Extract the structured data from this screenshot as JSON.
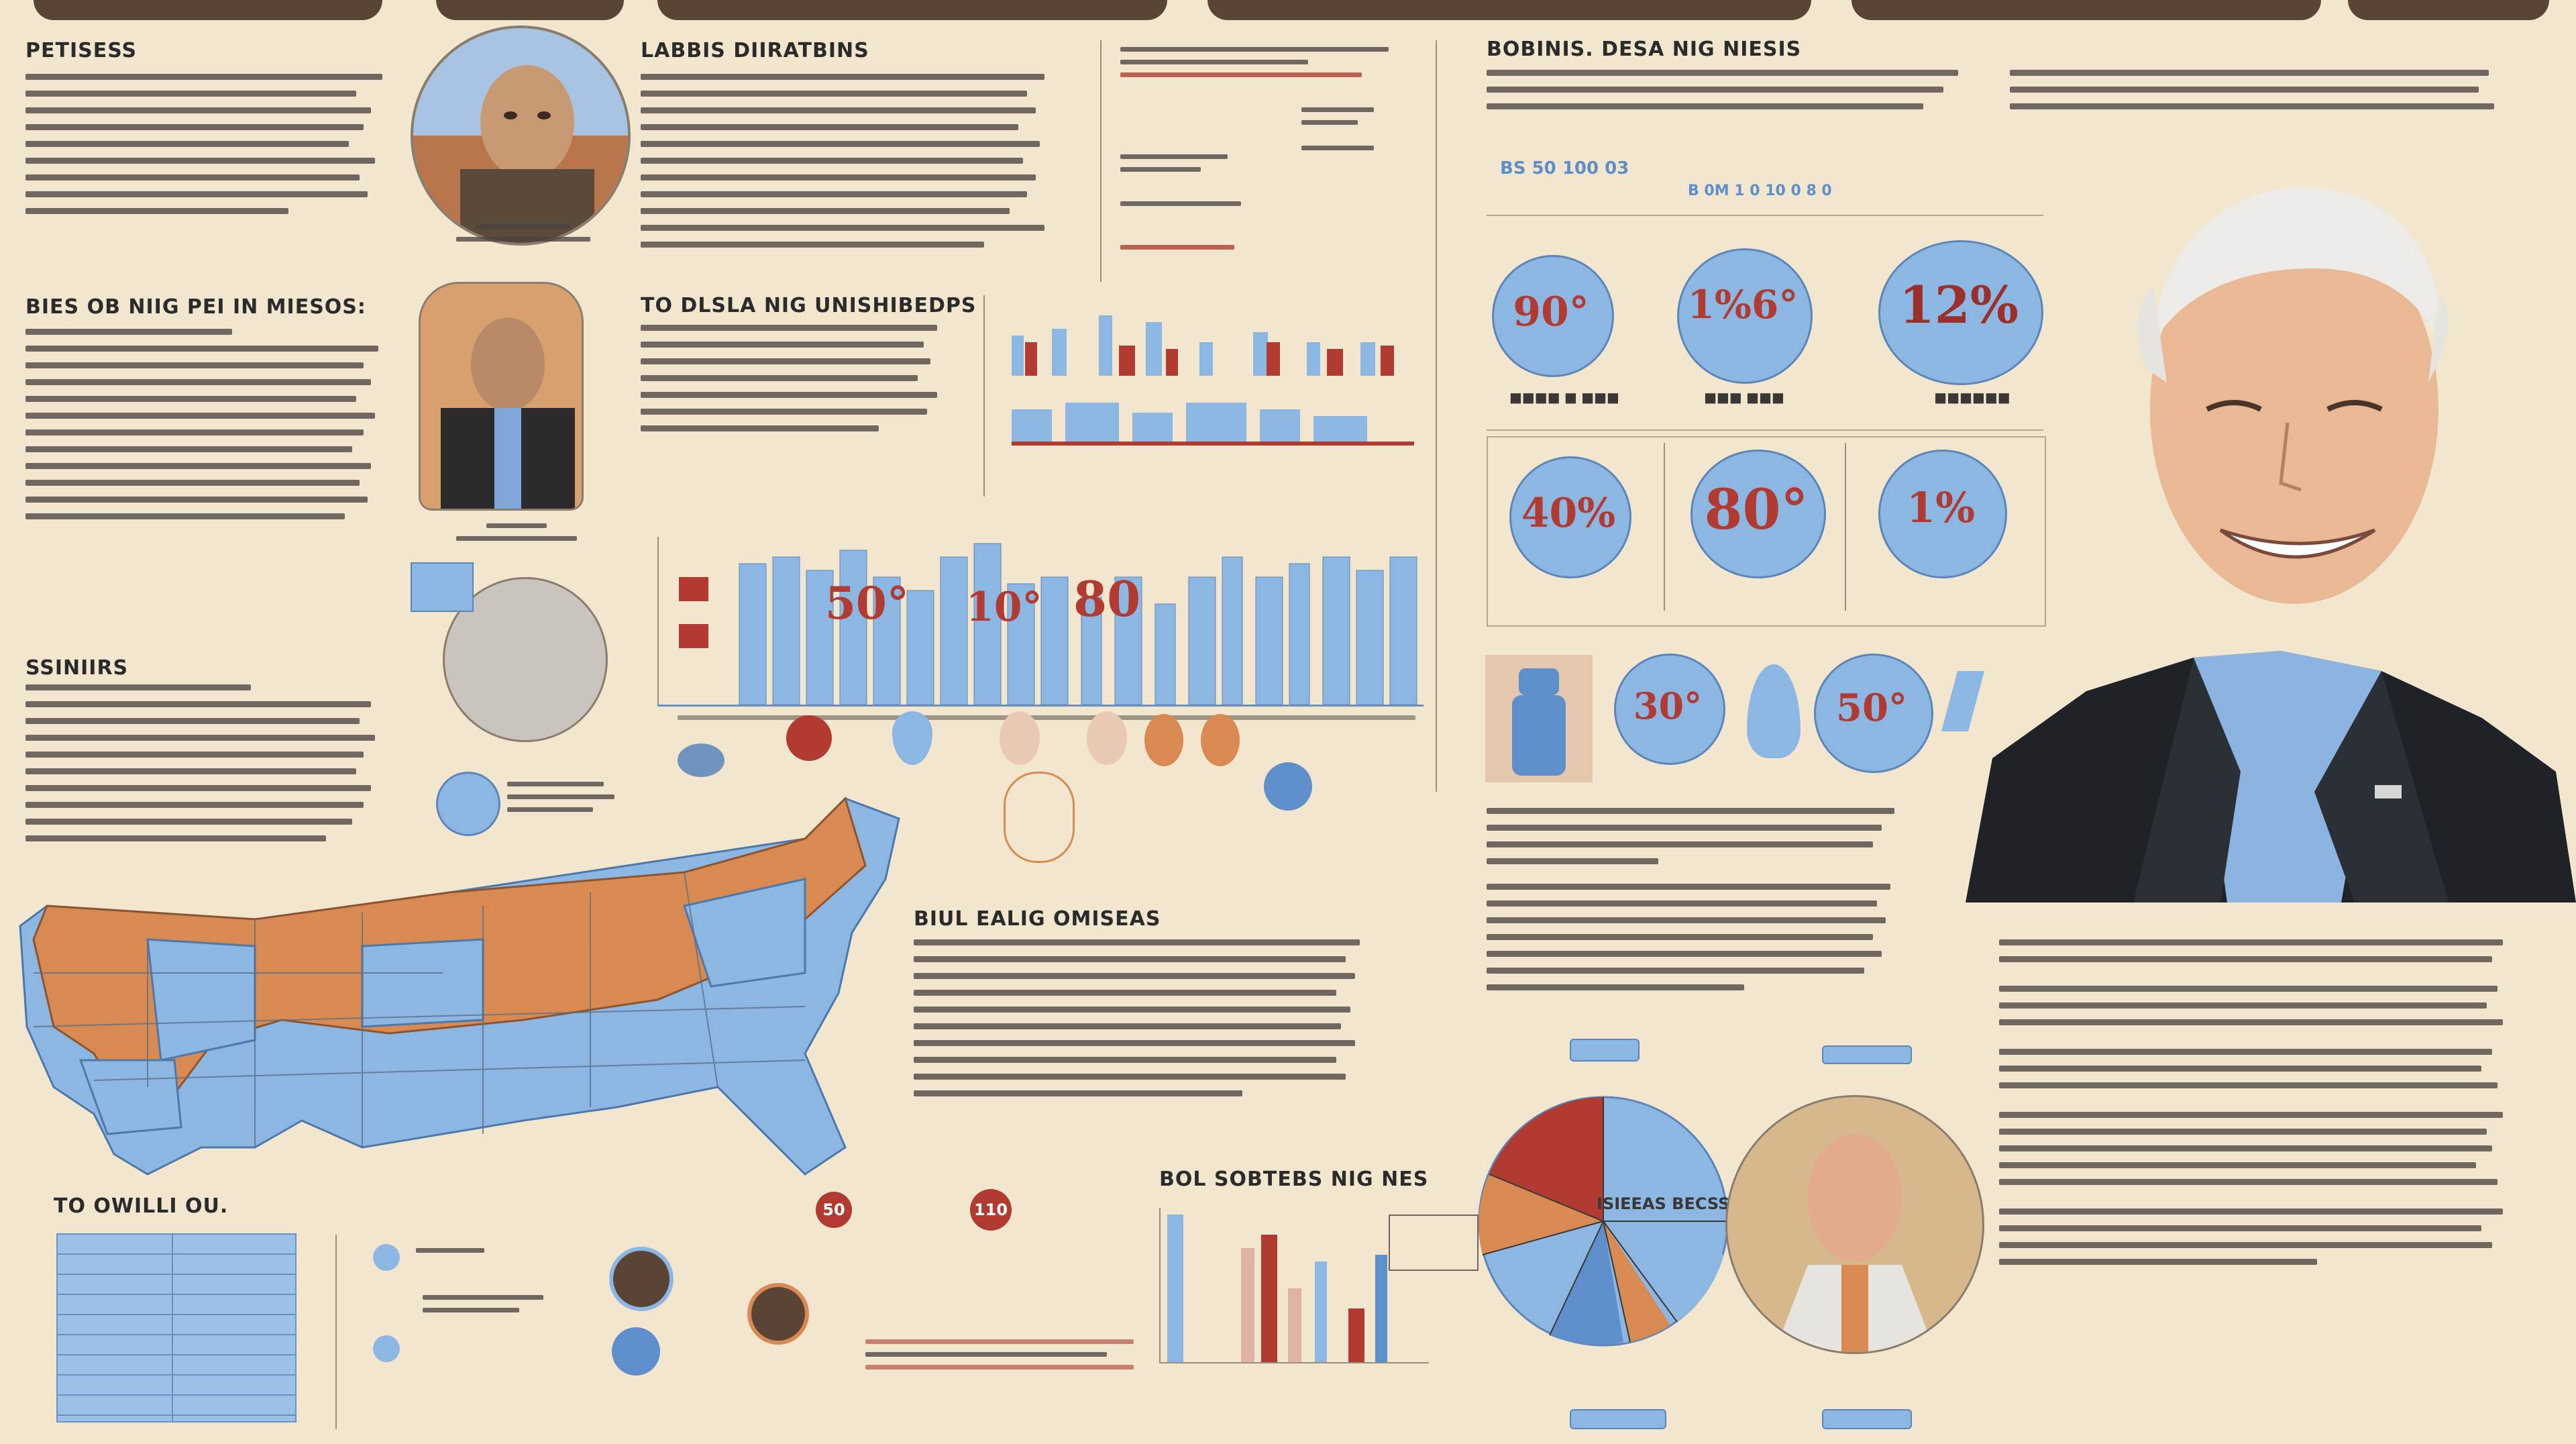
{
  "sections": {
    "top_left": "PETISESS",
    "mid_left": "BIES OB NIIG PEI IN MIESOS:",
    "lower_left": "SSINIIRS",
    "bottom_left": "TO OWILLI OU.",
    "top_center": "LABBIS DIIRATBINS",
    "center_mid": "TO DLSLA NIG UNISHIBEDPS",
    "center_low": "BIUL EALIG OMISEAS",
    "bottom_center": "BOL SOBTEBS NIG NES",
    "top_right": "BOBINIS. DESA NIG NIESIS"
  },
  "figure_stats": {
    "stat_1": "1%6°",
    "stat_2": "90°",
    "stat_3": "40%",
    "stat_4": "1%",
    "stat_5": "80°",
    "stat_6": "12%",
    "stat_7": "30°",
    "stat_8": "50°",
    "stat_9": "10°",
    "chart_caption": "BS 50 100 03",
    "chart_sub": "B 0M 1 0 10 0 8 0",
    "center_stat_a": "50°",
    "center_stat_b": "10°",
    "center_stat_c": "80"
  },
  "small_stats": {
    "red_a": "50",
    "red_b": "110",
    "pie_caption": "ISIEEAS BECSSS"
  },
  "colors": {
    "background": "#f3e6cf",
    "blue": "#8db7e3",
    "blue_dark": "#5f8fcb",
    "orange": "#d98a52",
    "red": "#b13a31",
    "dark": "#2b2b2b"
  }
}
